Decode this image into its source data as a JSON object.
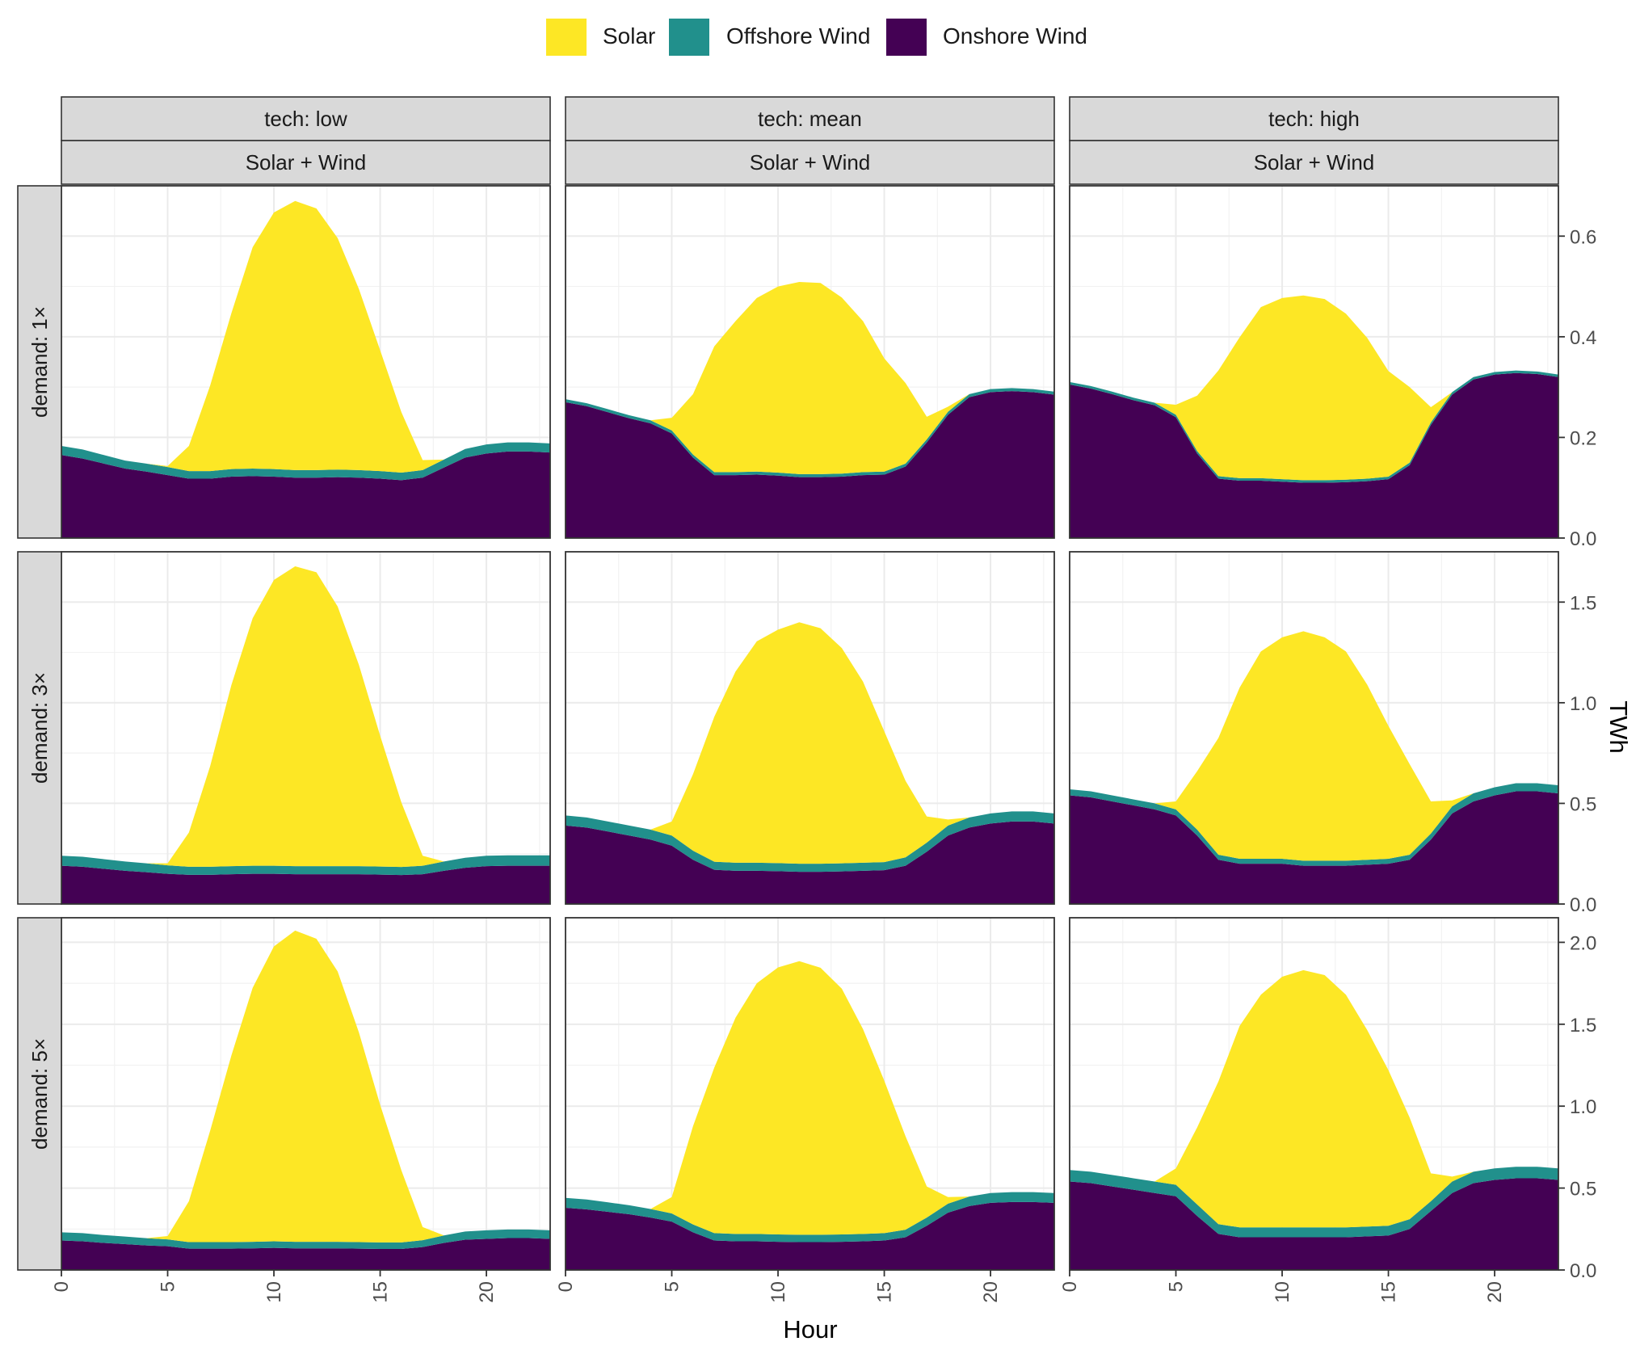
{
  "chart_data": {
    "type": "area",
    "stacked": true,
    "facet_layout": "grid",
    "legend": {
      "position": "top",
      "entries": [
        {
          "name": "Solar",
          "color": "#FDE725"
        },
        {
          "name": "Offshore Wind",
          "color": "#21908C"
        },
        {
          "name": "Onshore Wind",
          "color": "#440154"
        }
      ]
    },
    "xlabel": "Hour",
    "ylabel": "TWh",
    "x": [
      0,
      1,
      2,
      3,
      4,
      5,
      6,
      7,
      8,
      9,
      10,
      11,
      12,
      13,
      14,
      15,
      16,
      17,
      18,
      19,
      20,
      21,
      22,
      23
    ],
    "x_ticks": [
      0,
      5,
      10,
      15,
      20
    ],
    "x_tick_labels": [
      "0",
      "5",
      "10",
      "15",
      "20"
    ],
    "x_range": [
      0,
      23
    ],
    "columns": [
      {
        "label": "tech: low",
        "sublabel": "Solar + Wind"
      },
      {
        "label": "tech: mean",
        "sublabel": "Solar + Wind"
      },
      {
        "label": "tech: high",
        "sublabel": "Solar + Wind"
      }
    ],
    "rows": [
      {
        "label": "demand: 1×",
        "ylim": [
          0,
          0.7
        ],
        "y_ticks": [
          0,
          0.2,
          0.4,
          0.6
        ],
        "y_tick_labels": [
          "0.0",
          "0.2",
          "0.4",
          "0.6"
        ]
      },
      {
        "label": "demand: 3×",
        "ylim": [
          0,
          1.75
        ],
        "y_ticks": [
          0,
          0.5,
          1.0,
          1.5
        ],
        "y_tick_labels": [
          "0.0",
          "0.5",
          "1.0",
          "1.5"
        ]
      },
      {
        "label": "demand: 5×",
        "ylim": [
          0,
          2.15
        ],
        "y_ticks": [
          0,
          0.5,
          1.0,
          1.5,
          2.0
        ],
        "y_tick_labels": [
          "0.0",
          "0.5",
          "1.0",
          "1.5",
          "2.0"
        ]
      }
    ],
    "panels": [
      {
        "row": 0,
        "col": 0,
        "series": [
          {
            "name": "Onshore Wind",
            "values": [
              0.165,
              0.158,
              0.148,
              0.138,
              0.132,
              0.125,
              0.118,
              0.118,
              0.122,
              0.123,
              0.122,
              0.12,
              0.12,
              0.121,
              0.12,
              0.118,
              0.115,
              0.12,
              0.14,
              0.16,
              0.168,
              0.172,
              0.172,
              0.17
            ]
          },
          {
            "name": "Offshore Wind",
            "values": [
              0.018,
              0.018,
              0.017,
              0.016,
              0.016,
              0.016,
              0.015,
              0.015,
              0.015,
              0.015,
              0.015,
              0.015,
              0.015,
              0.015,
              0.015,
              0.015,
              0.015,
              0.015,
              0.016,
              0.017,
              0.018,
              0.018,
              0.018,
              0.018
            ]
          },
          {
            "name": "Solar",
            "values": [
              0,
              0,
              0,
              0,
              0,
              0.002,
              0.05,
              0.17,
              0.31,
              0.44,
              0.51,
              0.535,
              0.52,
              0.46,
              0.36,
              0.24,
              0.12,
              0.02,
              0,
              0,
              0,
              0,
              0,
              0
            ]
          }
        ]
      },
      {
        "row": 0,
        "col": 1,
        "series": [
          {
            "name": "Onshore Wind",
            "values": [
              0.27,
              0.262,
              0.25,
              0.238,
              0.228,
              0.208,
              0.16,
              0.125,
              0.125,
              0.126,
              0.124,
              0.121,
              0.121,
              0.122,
              0.125,
              0.126,
              0.142,
              0.19,
              0.245,
              0.28,
              0.29,
              0.292,
              0.29,
              0.285
            ]
          },
          {
            "name": "Offshore Wind",
            "values": [
              0.006,
              0.006,
              0.006,
              0.006,
              0.006,
              0.006,
              0.006,
              0.006,
              0.006,
              0.006,
              0.006,
              0.006,
              0.006,
              0.006,
              0.006,
              0.006,
              0.006,
              0.006,
              0.006,
              0.006,
              0.006,
              0.006,
              0.006,
              0.006
            ]
          },
          {
            "name": "Solar",
            "values": [
              0,
              0,
              0,
              0,
              0,
              0.025,
              0.12,
              0.25,
              0.3,
              0.345,
              0.37,
              0.382,
              0.38,
              0.35,
              0.3,
              0.225,
              0.16,
              0.045,
              0.01,
              0,
              0,
              0,
              0,
              0
            ]
          }
        ]
      },
      {
        "row": 0,
        "col": 2,
        "series": [
          {
            "name": "Onshore Wind",
            "values": [
              0.305,
              0.297,
              0.286,
              0.274,
              0.264,
              0.24,
              0.168,
              0.118,
              0.114,
              0.114,
              0.112,
              0.11,
              0.11,
              0.111,
              0.113,
              0.117,
              0.145,
              0.225,
              0.285,
              0.315,
              0.325,
              0.328,
              0.326,
              0.32
            ]
          },
          {
            "name": "Offshore Wind",
            "values": [
              0.005,
              0.005,
              0.005,
              0.005,
              0.005,
              0.005,
              0.005,
              0.005,
              0.005,
              0.005,
              0.005,
              0.005,
              0.005,
              0.005,
              0.005,
              0.005,
              0.005,
              0.005,
              0.005,
              0.005,
              0.005,
              0.005,
              0.005,
              0.005
            ]
          },
          {
            "name": "Solar",
            "values": [
              0,
              0,
              0,
              0,
              0,
              0.02,
              0.11,
              0.21,
              0.28,
              0.34,
              0.36,
              0.367,
              0.36,
              0.33,
              0.28,
              0.21,
              0.15,
              0.03,
              0,
              0,
              0,
              0,
              0,
              0
            ]
          }
        ]
      },
      {
        "row": 1,
        "col": 0,
        "series": [
          {
            "name": "Onshore Wind",
            "values": [
              0.19,
              0.185,
              0.175,
              0.165,
              0.158,
              0.15,
              0.145,
              0.145,
              0.148,
              0.15,
              0.15,
              0.148,
              0.148,
              0.148,
              0.148,
              0.146,
              0.144,
              0.148,
              0.165,
              0.18,
              0.188,
              0.19,
              0.19,
              0.19
            ]
          },
          {
            "name": "Offshore Wind",
            "values": [
              0.05,
              0.05,
              0.048,
              0.046,
              0.044,
              0.042,
              0.04,
              0.04,
              0.04,
              0.04,
              0.04,
              0.04,
              0.04,
              0.04,
              0.04,
              0.04,
              0.04,
              0.042,
              0.046,
              0.05,
              0.052,
              0.052,
              0.052,
              0.052
            ]
          },
          {
            "name": "Solar",
            "values": [
              0,
              0,
              0,
              0,
              0,
              0.01,
              0.17,
              0.5,
              0.9,
              1.23,
              1.42,
              1.49,
              1.46,
              1.29,
              1.0,
              0.65,
              0.32,
              0.05,
              0,
              0,
              0,
              0,
              0,
              0
            ]
          }
        ]
      },
      {
        "row": 1,
        "col": 1,
        "series": [
          {
            "name": "Onshore Wind",
            "values": [
              0.39,
              0.38,
              0.36,
              0.34,
              0.32,
              0.29,
              0.22,
              0.17,
              0.165,
              0.165,
              0.163,
              0.16,
              0.16,
              0.162,
              0.165,
              0.168,
              0.19,
              0.26,
              0.34,
              0.38,
              0.4,
              0.41,
              0.41,
              0.4
            ]
          },
          {
            "name": "Offshore Wind",
            "values": [
              0.05,
              0.05,
              0.05,
              0.05,
              0.05,
              0.05,
              0.045,
              0.04,
              0.04,
              0.04,
              0.04,
              0.04,
              0.04,
              0.04,
              0.04,
              0.04,
              0.042,
              0.045,
              0.05,
              0.05,
              0.05,
              0.05,
              0.05,
              0.05
            ]
          },
          {
            "name": "Solar",
            "values": [
              0,
              0,
              0,
              0,
              0,
              0.07,
              0.38,
              0.72,
              0.95,
              1.1,
              1.16,
              1.2,
              1.17,
              1.07,
              0.9,
              0.65,
              0.38,
              0.13,
              0.03,
              0,
              0,
              0,
              0,
              0
            ]
          }
        ]
      },
      {
        "row": 1,
        "col": 2,
        "series": [
          {
            "name": "Onshore Wind",
            "values": [
              0.54,
              0.53,
              0.51,
              0.49,
              0.47,
              0.44,
              0.34,
              0.22,
              0.2,
              0.2,
              0.2,
              0.19,
              0.19,
              0.19,
              0.195,
              0.2,
              0.22,
              0.32,
              0.45,
              0.51,
              0.54,
              0.56,
              0.56,
              0.55
            ]
          },
          {
            "name": "Offshore Wind",
            "values": [
              0.03,
              0.03,
              0.03,
              0.03,
              0.03,
              0.03,
              0.03,
              0.025,
              0.025,
              0.025,
              0.025,
              0.025,
              0.025,
              0.025,
              0.025,
              0.025,
              0.025,
              0.03,
              0.035,
              0.04,
              0.04,
              0.04,
              0.04,
              0.04
            ]
          },
          {
            "name": "Solar",
            "values": [
              0,
              0,
              0,
              0,
              0,
              0.04,
              0.29,
              0.58,
              0.85,
              1.03,
              1.1,
              1.14,
              1.11,
              1.04,
              0.87,
              0.66,
              0.45,
              0.16,
              0.03,
              0,
              0,
              0,
              0,
              0
            ]
          }
        ]
      },
      {
        "row": 2,
        "col": 0,
        "series": [
          {
            "name": "Onshore Wind",
            "values": [
              0.18,
              0.175,
              0.165,
              0.158,
              0.15,
              0.145,
              0.13,
              0.13,
              0.13,
              0.132,
              0.135,
              0.132,
              0.132,
              0.132,
              0.13,
              0.128,
              0.128,
              0.14,
              0.165,
              0.185,
              0.19,
              0.195,
              0.195,
              0.19
            ]
          },
          {
            "name": "Offshore Wind",
            "values": [
              0.05,
              0.05,
              0.048,
              0.046,
              0.044,
              0.042,
              0.04,
              0.04,
              0.04,
              0.04,
              0.04,
              0.04,
              0.04,
              0.04,
              0.04,
              0.04,
              0.04,
              0.042,
              0.046,
              0.05,
              0.052,
              0.052,
              0.052,
              0.052
            ]
          },
          {
            "name": "Solar",
            "values": [
              0,
              0,
              0,
              0,
              0,
              0.02,
              0.25,
              0.68,
              1.14,
              1.55,
              1.8,
              1.9,
              1.85,
              1.65,
              1.28,
              0.84,
              0.44,
              0.08,
              0,
              0,
              0,
              0,
              0,
              0
            ]
          }
        ]
      },
      {
        "row": 2,
        "col": 1,
        "series": [
          {
            "name": "Onshore Wind",
            "values": [
              0.38,
              0.37,
              0.355,
              0.34,
              0.32,
              0.295,
              0.23,
              0.18,
              0.175,
              0.175,
              0.172,
              0.17,
              0.17,
              0.172,
              0.175,
              0.18,
              0.2,
              0.27,
              0.35,
              0.39,
              0.41,
              0.415,
              0.415,
              0.41
            ]
          },
          {
            "name": "Offshore Wind",
            "values": [
              0.06,
              0.06,
              0.058,
              0.055,
              0.052,
              0.05,
              0.048,
              0.045,
              0.045,
              0.045,
              0.045,
              0.045,
              0.045,
              0.045,
              0.045,
              0.045,
              0.046,
              0.05,
              0.055,
              0.058,
              0.06,
              0.06,
              0.06,
              0.06
            ]
          },
          {
            "name": "Solar",
            "values": [
              0,
              0,
              0,
              0,
              0,
              0.1,
              0.6,
              1.01,
              1.32,
              1.53,
              1.63,
              1.67,
              1.63,
              1.5,
              1.25,
              0.93,
              0.57,
              0.19,
              0.04,
              0,
              0,
              0,
              0,
              0
            ]
          }
        ]
      },
      {
        "row": 2,
        "col": 2,
        "series": [
          {
            "name": "Onshore Wind",
            "values": [
              0.54,
              0.53,
              0.51,
              0.49,
              0.47,
              0.45,
              0.33,
              0.22,
              0.2,
              0.2,
              0.2,
              0.2,
              0.2,
              0.2,
              0.205,
              0.21,
              0.25,
              0.36,
              0.47,
              0.53,
              0.55,
              0.56,
              0.56,
              0.55
            ]
          },
          {
            "name": "Offshore Wind",
            "values": [
              0.07,
              0.07,
              0.07,
              0.07,
              0.07,
              0.07,
              0.07,
              0.06,
              0.06,
              0.06,
              0.06,
              0.06,
              0.06,
              0.06,
              0.06,
              0.06,
              0.06,
              0.06,
              0.07,
              0.07,
              0.07,
              0.07,
              0.07,
              0.07
            ]
          },
          {
            "name": "Solar",
            "values": [
              0,
              0,
              0,
              0,
              0,
              0.1,
              0.47,
              0.87,
              1.23,
              1.42,
              1.53,
              1.57,
              1.54,
              1.42,
              1.2,
              0.95,
              0.62,
              0.17,
              0.03,
              0,
              0,
              0,
              0,
              0
            ]
          }
        ]
      }
    ]
  }
}
